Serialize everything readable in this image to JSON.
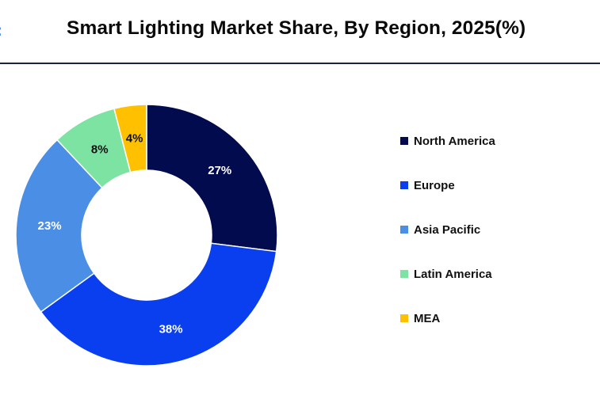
{
  "header": {
    "title": "Smart Lighting Market Share, By Region, 2025(%)"
  },
  "chart_data": {
    "type": "pie",
    "title": "Smart Lighting Market Share, By Region, 2025(%)",
    "donut": true,
    "legend_position": "right",
    "categories": [
      "North America",
      "Europe",
      "Asia Pacific",
      "Latin America",
      "MEA"
    ],
    "values": [
      27,
      38,
      23,
      8,
      4
    ],
    "labels": [
      "27%",
      "38%",
      "23%",
      "8%",
      "4%"
    ],
    "colors": [
      "#020b4e",
      "#0a3ff0",
      "#4a8ee6",
      "#7de3a3",
      "#ffc000"
    ],
    "label_colors": [
      "#ffffff",
      "#ffffff",
      "#ffffff",
      "#111111",
      "#111111"
    ]
  }
}
